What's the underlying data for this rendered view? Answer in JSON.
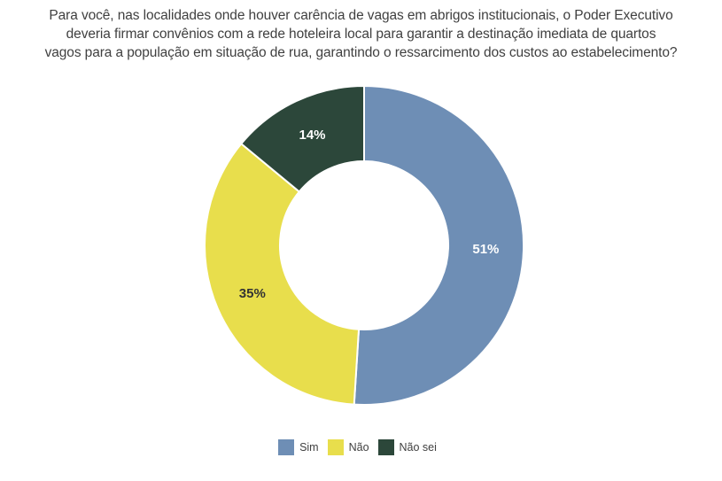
{
  "header": {
    "title_lines": [
      "Para você, nas localidades onde houver carência de vagas em abrigos institucionais, o Poder Executivo",
      "deveria firmar convênios com a rede hoteleira local para garantir a destinação imediata de quartos",
      "vagos para a população em situação de rua, garantindo o ressarcimento dos custos ao estabelecimento?"
    ],
    "title_color": "#404040"
  },
  "chart_data": {
    "type": "pie",
    "subtype": "donut",
    "title": "Para você, nas localidades onde houver carência de vagas em abrigos institucionais, o Poder Executivo deveria firmar convênios com a rede hoteleira local para garantir a destinação imediata de quartos vagos para a população em situação de rua, garantindo o ressarcimento dos custos ao estabelecimento?",
    "labels": [
      "Sim",
      "Não",
      "Não sei"
    ],
    "values": [
      51,
      35,
      14
    ],
    "unit": "%",
    "data_labels": [
      "51%",
      "35%",
      "14%"
    ],
    "colors": [
      "#6e8eb5",
      "#e8de4c",
      "#2c473a"
    ],
    "data_label_colors": [
      "#ffffff",
      "#333333",
      "#ffffff"
    ],
    "separator_color": "#ffffff",
    "start_angle_deg_from_top": 0,
    "direction": "clockwise",
    "inner_radius_ratio": 0.53,
    "legend_position": "bottom"
  }
}
